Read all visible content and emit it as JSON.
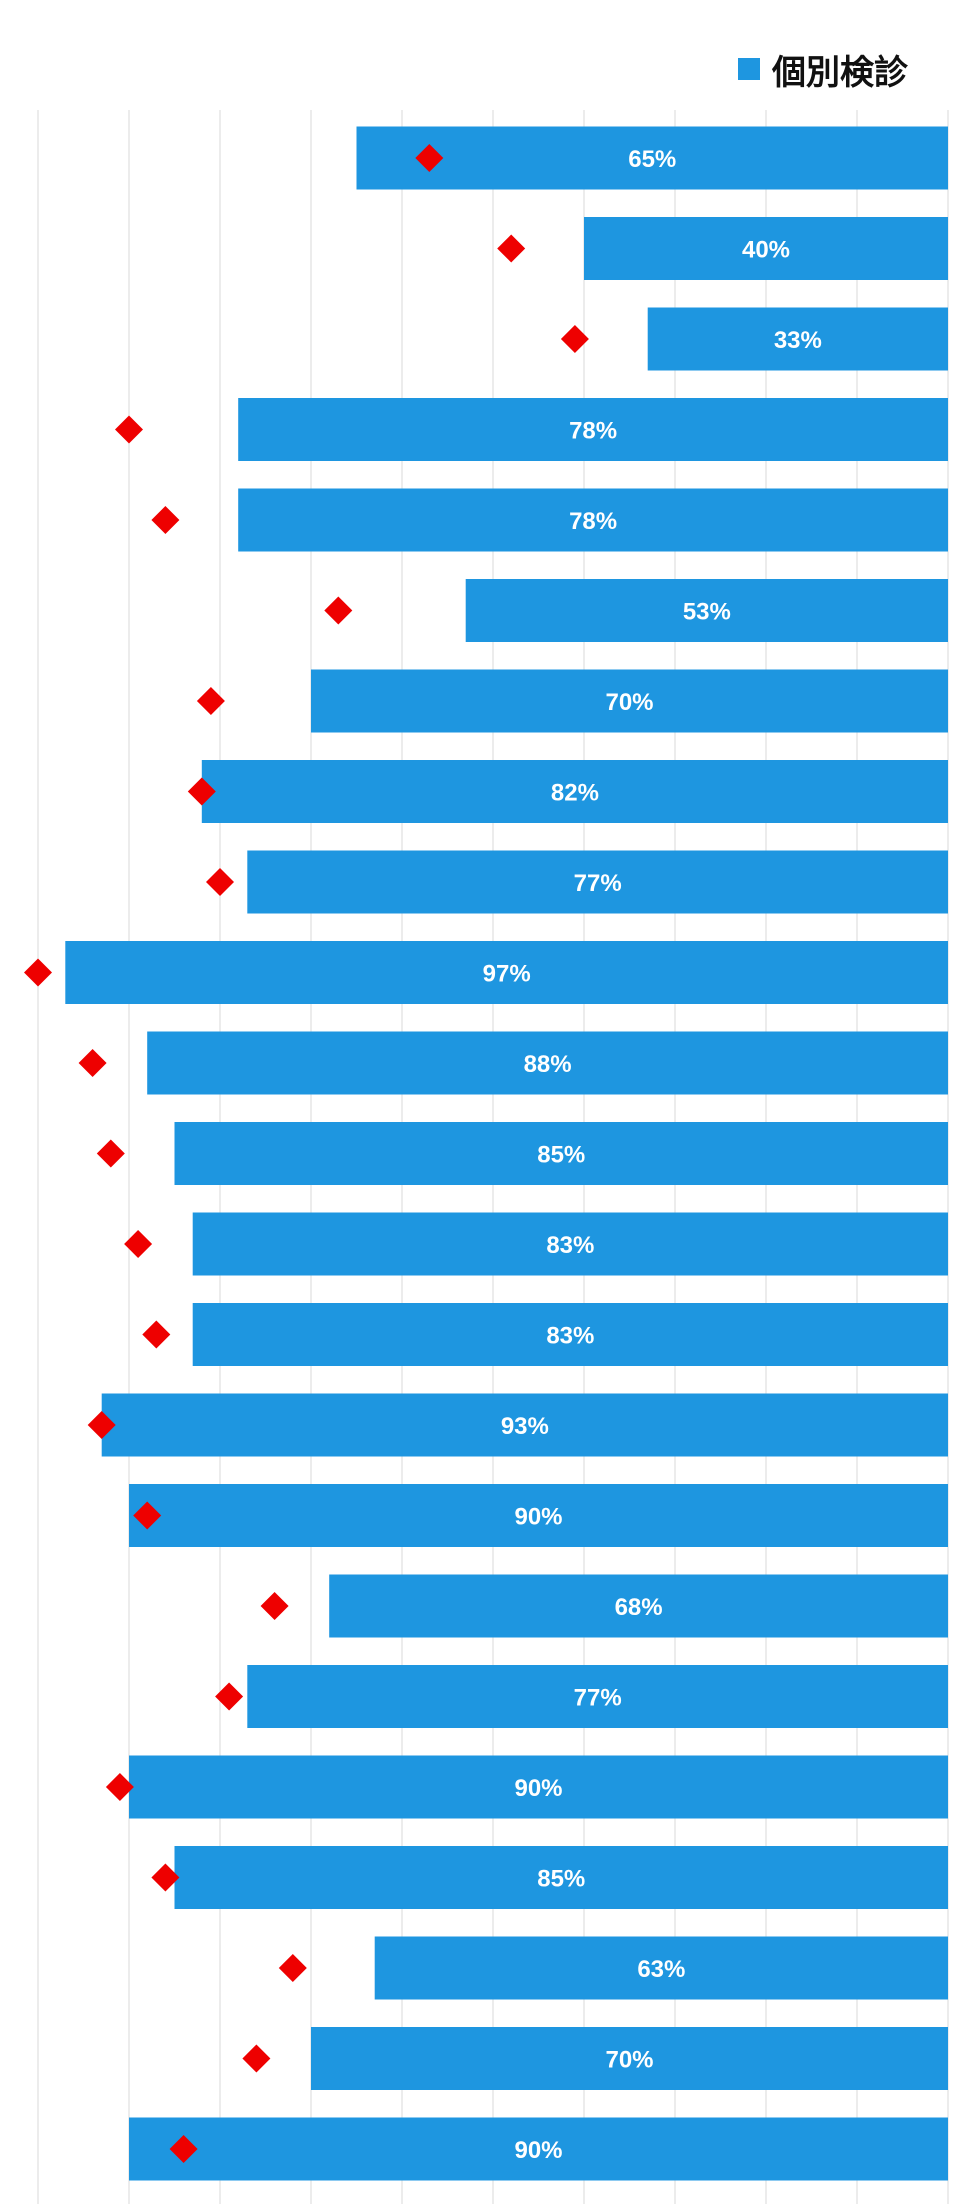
{
  "legend": {
    "label": "個別検診",
    "color": "#1e96e0"
  },
  "colors": {
    "bar": "#1e96e0",
    "marker": "#ee0000",
    "grid": "#d9d9d9",
    "label": "#ffffff"
  },
  "chart_data": {
    "type": "bar",
    "orientation": "horizontal",
    "direction": "right-to-left",
    "xlim": [
      0,
      100
    ],
    "grid": true,
    "legend_position": "top-right",
    "value_suffix": "%",
    "series": [
      {
        "name": "個別検診",
        "kind": "bar",
        "values": [
          65,
          40,
          33,
          78,
          78,
          53,
          70,
          82,
          77,
          97,
          88,
          85,
          83,
          83,
          93,
          90,
          68,
          77,
          90,
          85,
          63,
          70,
          90
        ]
      },
      {
        "kind": "marker",
        "values": [
          57,
          48,
          41,
          90,
          86,
          67,
          81,
          82,
          80,
          100,
          94,
          92,
          89,
          87,
          93,
          88,
          74,
          79,
          91,
          86,
          72,
          76,
          84
        ]
      }
    ]
  }
}
